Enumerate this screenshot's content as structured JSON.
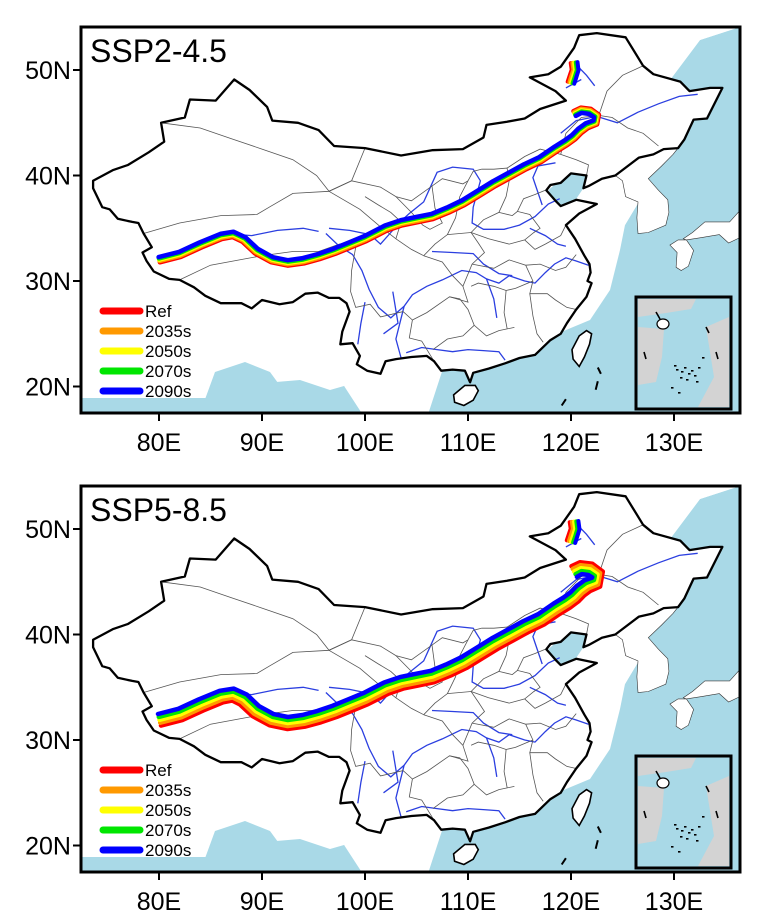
{
  "colors": {
    "ocean": "#a9d9e7",
    "land": "#ffffff",
    "inset_land": "#d3d3d3",
    "border": "#000000",
    "province": "#555555",
    "river": "#2b3fe0"
  },
  "series_colors": [
    "#ff0000",
    "#ff9900",
    "#ffff00",
    "#00e600",
    "#0000ff"
  ],
  "legend": {
    "ref": "Ref",
    "s2035": "2035s",
    "s2050": "2050s",
    "s2070": "2070s",
    "s2090": "2090s"
  },
  "axes": {
    "lat_ticks": [
      "50N",
      "40N",
      "30N",
      "20N"
    ],
    "lon_ticks": [
      "80E",
      "90E",
      "100E",
      "110E",
      "120E",
      "130E"
    ]
  },
  "panels": [
    {
      "id": "ssp245",
      "title": "SSP2-4.5",
      "spread": 0.45
    },
    {
      "id": "ssp585",
      "title": "SSP5-8.5",
      "spread": 1.0
    }
  ],
  "map_extent": {
    "lon": [
      73,
      136
    ],
    "lat": [
      17,
      54
    ]
  },
  "inset": "South China Sea islands inset"
}
